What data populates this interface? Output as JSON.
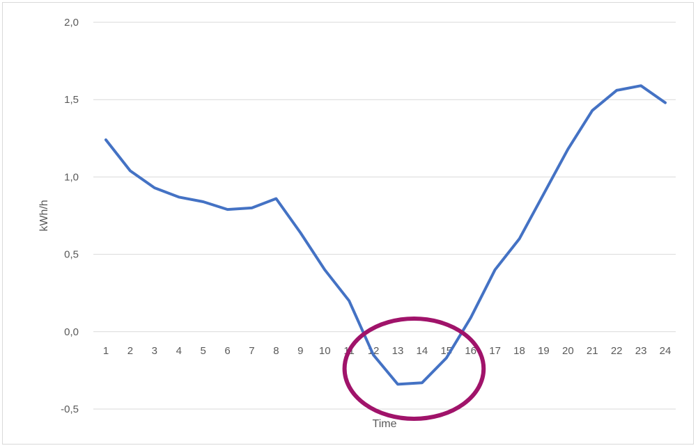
{
  "chart_data": {
    "type": "line",
    "title": "",
    "xlabel": "Time",
    "ylabel": "kWh/h",
    "x": [
      1,
      2,
      3,
      4,
      5,
      6,
      7,
      8,
      9,
      10,
      11,
      12,
      13,
      14,
      15,
      16,
      17,
      18,
      19,
      20,
      21,
      22,
      23,
      24
    ],
    "y_ticks": [
      "2,0",
      "1,5",
      "1,0",
      "0,5",
      "0,0",
      "-0,5"
    ],
    "y_tick_values": [
      2.0,
      1.5,
      1.0,
      0.5,
      0.0,
      -0.5
    ],
    "ylim": [
      -0.5,
      2.0
    ],
    "grid": true,
    "legend": "none",
    "series": [
      {
        "values": [
          1.24,
          1.04,
          0.93,
          0.87,
          0.84,
          0.79,
          0.8,
          0.86,
          0.64,
          0.4,
          0.2,
          -0.15,
          -0.34,
          -0.33,
          -0.17,
          0.09,
          0.4,
          0.6,
          0.89,
          1.18,
          1.43,
          1.56,
          1.59,
          1.48
        ],
        "color": "#4472c4"
      }
    ],
    "annotations": [
      {
        "type": "ellipse",
        "description": "highlight",
        "x_range": [
          11.5,
          15.5
        ],
        "color": "#a0136a"
      }
    ]
  },
  "colors": {
    "line": "#4472c4",
    "highlight": "#a0136a",
    "grid": "#d9d9d9",
    "text": "#595959"
  }
}
